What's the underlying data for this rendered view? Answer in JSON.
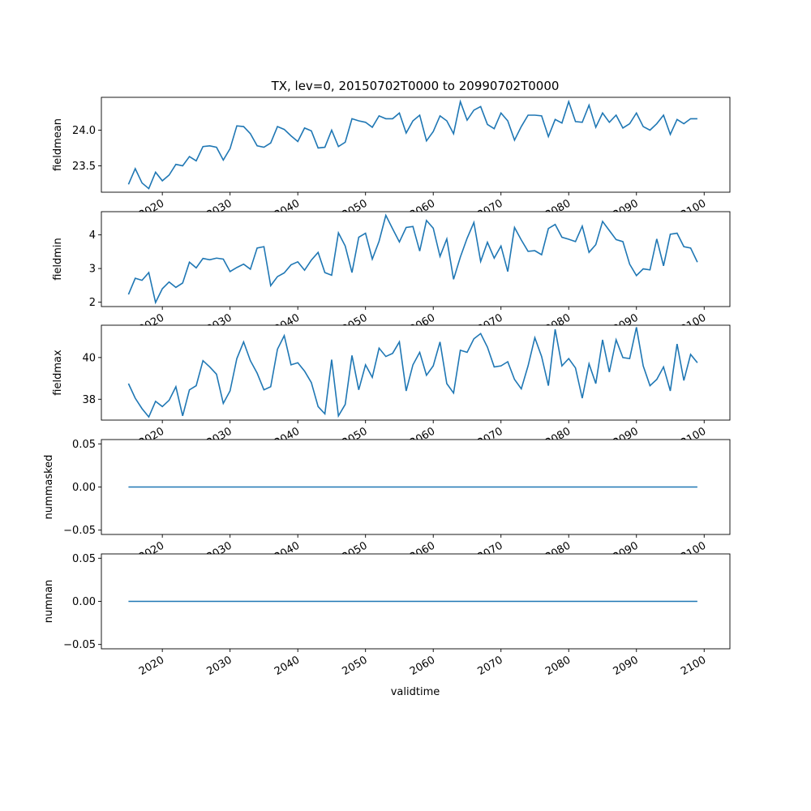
{
  "figure": {
    "title": "TX, lev=0, 20150702T0000 to 20990702T0000",
    "xlabel": "validtime",
    "line_color": "#1f77b4",
    "x_ticks": [
      2020,
      2030,
      2040,
      2050,
      2060,
      2070,
      2080,
      2090,
      2100
    ],
    "x_range": [
      2011.0,
      2103.8
    ]
  },
  "chart_data": [
    {
      "type": "line",
      "ylabel": "fieldmean",
      "ylim": [
        23.13,
        24.46
      ],
      "yticks": [
        23.5,
        24.0
      ],
      "ytick_labels": [
        "23.5",
        "24.0"
      ],
      "start_year": 2015,
      "values": [
        23.24,
        23.46,
        23.26,
        23.18,
        23.41,
        23.29,
        23.37,
        23.52,
        23.5,
        23.63,
        23.57,
        23.77,
        23.78,
        23.76,
        23.58,
        23.74,
        24.06,
        24.05,
        23.95,
        23.78,
        23.76,
        23.82,
        24.05,
        24.01,
        23.92,
        23.84,
        24.03,
        23.99,
        23.75,
        23.76,
        24.0,
        23.77,
        23.83,
        24.16,
        24.13,
        24.11,
        24.04,
        24.2,
        24.16,
        24.16,
        24.24,
        23.96,
        24.13,
        24.21,
        23.85,
        23.98,
        24.2,
        24.13,
        23.95,
        24.4,
        24.14,
        24.28,
        24.33,
        24.08,
        24.02,
        24.24,
        24.13,
        23.86,
        24.05,
        24.21,
        24.21,
        24.2,
        23.91,
        24.15,
        24.1,
        24.4,
        24.12,
        24.11,
        24.35,
        24.04,
        24.24,
        24.11,
        24.21,
        24.03,
        24.09,
        24.24,
        24.05,
        24.0,
        24.09,
        24.21,
        23.94,
        24.15,
        24.09,
        24.16,
        24.16
      ]
    },
    {
      "type": "line",
      "ylabel": "fieldmin",
      "ylim": [
        1.87,
        4.69
      ],
      "yticks": [
        2,
        3,
        4
      ],
      "ytick_labels": [
        "2",
        "3",
        "4"
      ],
      "start_year": 2015,
      "values": [
        2.23,
        2.71,
        2.65,
        2.88,
        1.99,
        2.4,
        2.6,
        2.44,
        2.57,
        3.19,
        3.02,
        3.3,
        3.26,
        3.31,
        3.28,
        2.91,
        3.03,
        3.13,
        2.98,
        3.61,
        3.65,
        2.49,
        2.76,
        2.87,
        3.11,
        3.2,
        2.95,
        3.25,
        3.48,
        2.88,
        2.8,
        4.06,
        3.67,
        2.88,
        3.93,
        4.05,
        3.28,
        3.81,
        4.58,
        4.18,
        3.79,
        4.22,
        4.25,
        3.52,
        4.43,
        4.2,
        3.36,
        3.88,
        2.68,
        3.34,
        3.9,
        4.37,
        3.21,
        3.78,
        3.31,
        3.67,
        2.91,
        4.22,
        3.85,
        3.51,
        3.53,
        3.41,
        4.19,
        4.31,
        3.93,
        3.87,
        3.8,
        4.26,
        3.48,
        3.71,
        4.4,
        4.13,
        3.86,
        3.8,
        3.13,
        2.79,
        2.99,
        2.96,
        3.88,
        3.08,
        4.02,
        4.05,
        3.65,
        3.61,
        3.19
      ]
    },
    {
      "type": "line",
      "ylabel": "fieldmax",
      "ylim": [
        37.0,
        41.55
      ],
      "yticks": [
        38,
        40
      ],
      "ytick_labels": [
        "38",
        "40"
      ],
      "start_year": 2015,
      "values": [
        38.75,
        38.05,
        37.55,
        37.15,
        37.9,
        37.65,
        37.95,
        38.6,
        37.2,
        38.45,
        38.65,
        39.85,
        39.55,
        39.2,
        37.8,
        38.4,
        39.95,
        40.75,
        39.85,
        39.25,
        38.45,
        38.6,
        40.4,
        41.05,
        39.65,
        39.75,
        39.35,
        38.8,
        37.65,
        37.3,
        39.9,
        37.2,
        37.75,
        40.1,
        38.45,
        39.65,
        39.05,
        40.45,
        40.05,
        40.2,
        40.75,
        38.4,
        39.65,
        40.25,
        39.15,
        39.6,
        40.75,
        38.75,
        38.3,
        40.35,
        40.25,
        40.9,
        41.15,
        40.5,
        39.55,
        39.6,
        39.8,
        38.95,
        38.5,
        39.6,
        40.95,
        40.05,
        38.65,
        41.35,
        39.6,
        39.95,
        39.5,
        38.05,
        39.7,
        38.75,
        40.85,
        39.3,
        40.85,
        40.0,
        39.95,
        41.45,
        39.6,
        38.65,
        38.95,
        39.55,
        38.4,
        40.65,
        38.9,
        40.15,
        39.75
      ]
    },
    {
      "type": "line",
      "ylabel": "nummasked",
      "ylim": [
        -0.055,
        0.055
      ],
      "yticks": [
        -0.05,
        0.0,
        0.05
      ],
      "ytick_labels": [
        "−0.05",
        "0.00",
        "0.05"
      ],
      "start_year": 2015,
      "constant": 0,
      "count": 85
    },
    {
      "type": "line",
      "ylabel": "numnan",
      "ylim": [
        -0.055,
        0.055
      ],
      "yticks": [
        -0.05,
        0.0,
        0.05
      ],
      "ytick_labels": [
        "−0.05",
        "0.00",
        "0.05"
      ],
      "start_year": 2015,
      "constant": 0,
      "count": 85
    }
  ]
}
